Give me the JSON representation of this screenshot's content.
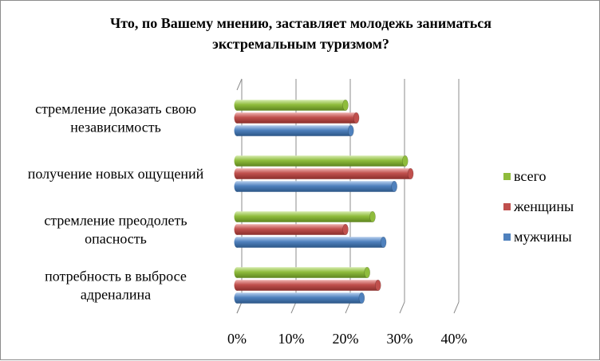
{
  "chart_data": {
    "type": "bar",
    "orientation": "horizontal",
    "title_lines": [
      "Что, по Вашему мнению, заставляет молодежь заниматься",
      "экстремальным туризмом?"
    ],
    "categories": [
      [
        "стремление  доказать свою",
        "независимость"
      ],
      [
        "получение  новых ощущений"
      ],
      [
        "стремление  преодолеть",
        "опасность"
      ],
      [
        "потребность в выбросе",
        "адреналина"
      ]
    ],
    "series": [
      {
        "name": "всего",
        "color": "#8fbc3c",
        "values": [
          20,
          31,
          25,
          24
        ]
      },
      {
        "name": "женщины",
        "color": "#c0504d",
        "values": [
          22,
          32,
          20,
          26
        ]
      },
      {
        "name": "мужчины",
        "color": "#4f81bd",
        "values": [
          21,
          29,
          27,
          23
        ]
      }
    ],
    "xlim": [
      0,
      40
    ],
    "xticks": [
      "0%",
      "10%",
      "20%",
      "30%",
      "40%"
    ],
    "grid": true,
    "legend_position": "right"
  }
}
